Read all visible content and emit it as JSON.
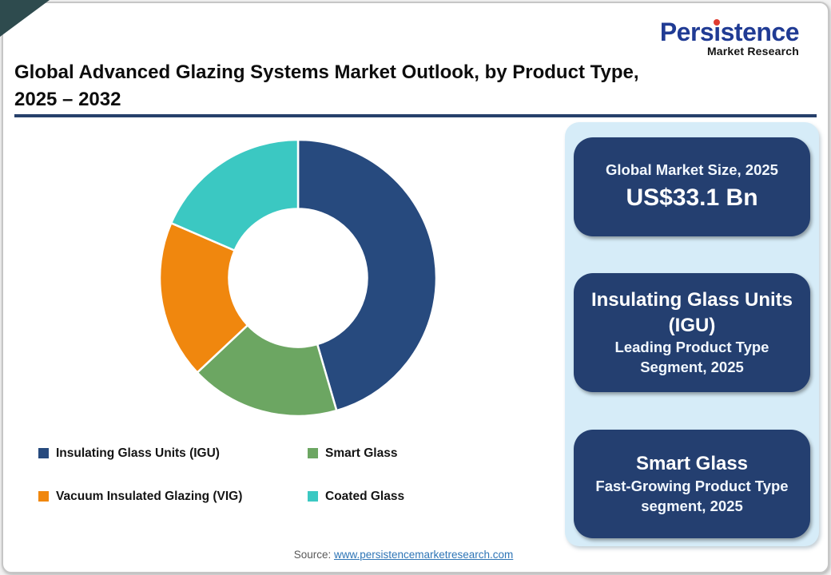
{
  "logo": {
    "name_part1": "Pers",
    "name_dot_letter": "i",
    "name_part2": "stence",
    "subtitle": "Market Research"
  },
  "title": {
    "line1": "Global Advanced Glazing Systems Market Outlook, by Product Type,",
    "line2": "2025 – 2032"
  },
  "chart_data": {
    "type": "pie",
    "variant": "donut",
    "title": "Global Advanced Glazing Systems Market Outlook, by Product Type, 2025 – 2032",
    "categories": [
      "Insulating Glass Units (IGU)",
      "Smart Glass",
      "Vacuum Insulated Glazing (VIG)",
      "Coated Glass"
    ],
    "values_pct": [
      45.5,
      17.5,
      18.5,
      18.5
    ],
    "colors": [
      "#274a7e",
      "#6ca662",
      "#f0870e",
      "#3bc8c2"
    ],
    "start_angle_deg": 0,
    "direction": "clockwise",
    "inner_radius_ratio": 0.5,
    "segment_gap_color": "#ffffff",
    "legend_position": "bottom-left"
  },
  "legend": {
    "items": [
      {
        "label": "Insulating Glass Units (IGU)",
        "color": "#274a7e"
      },
      {
        "label": "Smart Glass",
        "color": "#6ca662"
      },
      {
        "label": "Vacuum Insulated Glazing (VIG)",
        "color": "#f0870e"
      },
      {
        "label": "Coated Glass",
        "color": "#3bc8c2"
      }
    ]
  },
  "highlight_panel": {
    "panel_bg": "#d6ecf8",
    "card_bg": "#243f70",
    "cards": [
      {
        "line1": "Global Market Size, 2025",
        "line2": "US$33.1 Bn"
      },
      {
        "line1": "Insulating Glass Units (IGU)",
        "line2": "Leading Product Type Segment, 2025"
      },
      {
        "line1": "Smart Glass",
        "line2": "Fast-Growing Product Type segment, 2025"
      }
    ]
  },
  "source": {
    "prefix": "Source: ",
    "link_text": "www.persistencemarketresearch.com"
  }
}
